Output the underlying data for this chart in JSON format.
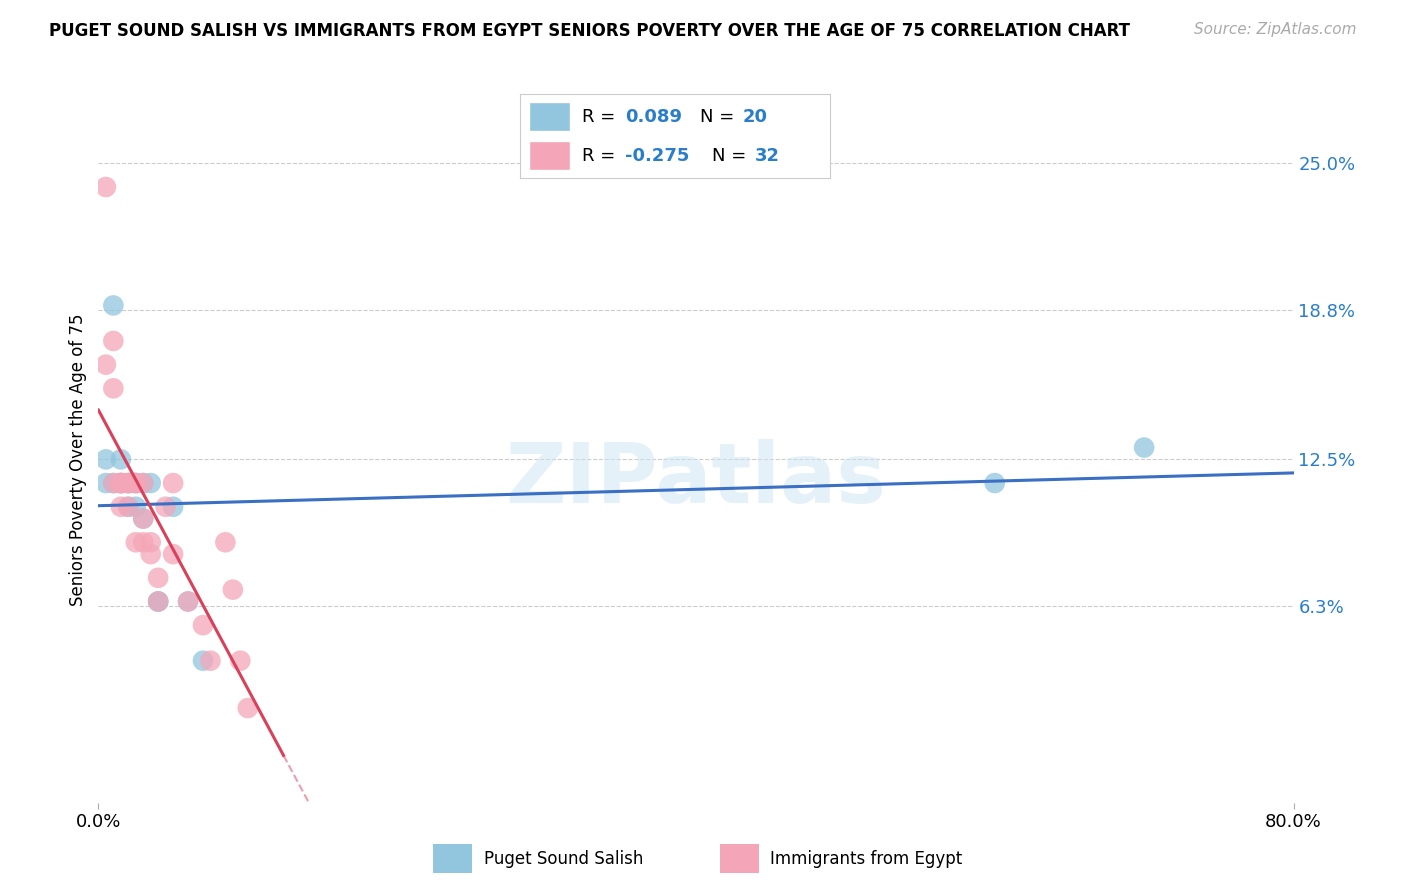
{
  "title": "PUGET SOUND SALISH VS IMMIGRANTS FROM EGYPT SENIORS POVERTY OVER THE AGE OF 75 CORRELATION CHART",
  "source": "Source: ZipAtlas.com",
  "ylabel": "Seniors Poverty Over the Age of 75",
  "xlim": [
    0.0,
    0.8
  ],
  "ylim": [
    -0.02,
    0.27
  ],
  "yticks_right": [
    0.063,
    0.125,
    0.188,
    0.25
  ],
  "ytick_labels_right": [
    "6.3%",
    "12.5%",
    "18.8%",
    "25.0%"
  ],
  "blue_color": "#92c5de",
  "pink_color": "#f4a6b8",
  "blue_R": 0.089,
  "blue_N": 20,
  "pink_R": -0.275,
  "pink_N": 32,
  "blue_line_color": "#3a6fc4",
  "pink_line_color": "#d9405a",
  "watermark_color": "#cde4f5",
  "background_color": "#ffffff",
  "grid_color": "#cccccc",
  "blue_scatter_x": [
    0.005,
    0.005,
    0.01,
    0.01,
    0.015,
    0.015,
    0.02,
    0.02,
    0.025,
    0.025,
    0.03,
    0.03,
    0.035,
    0.04,
    0.04,
    0.05,
    0.06,
    0.07,
    0.6,
    0.7
  ],
  "blue_scatter_y": [
    0.125,
    0.115,
    0.19,
    0.115,
    0.125,
    0.115,
    0.115,
    0.105,
    0.115,
    0.105,
    0.115,
    0.1,
    0.115,
    0.065,
    0.065,
    0.105,
    0.065,
    0.04,
    0.115,
    0.13
  ],
  "pink_scatter_x": [
    0.005,
    0.005,
    0.01,
    0.01,
    0.01,
    0.015,
    0.015,
    0.015,
    0.015,
    0.02,
    0.02,
    0.02,
    0.025,
    0.025,
    0.025,
    0.03,
    0.03,
    0.03,
    0.035,
    0.035,
    0.04,
    0.04,
    0.045,
    0.05,
    0.05,
    0.06,
    0.07,
    0.075,
    0.085,
    0.09,
    0.095,
    0.1
  ],
  "pink_scatter_y": [
    0.24,
    0.165,
    0.175,
    0.155,
    0.115,
    0.115,
    0.115,
    0.105,
    0.115,
    0.115,
    0.115,
    0.105,
    0.115,
    0.115,
    0.09,
    0.115,
    0.1,
    0.09,
    0.09,
    0.085,
    0.075,
    0.065,
    0.105,
    0.115,
    0.085,
    0.065,
    0.055,
    0.04,
    0.09,
    0.07,
    0.04,
    0.02
  ],
  "legend_color": "#2a7dc9",
  "title_fontsize": 12,
  "source_fontsize": 11,
  "axis_label_fontsize": 12,
  "tick_fontsize": 13
}
